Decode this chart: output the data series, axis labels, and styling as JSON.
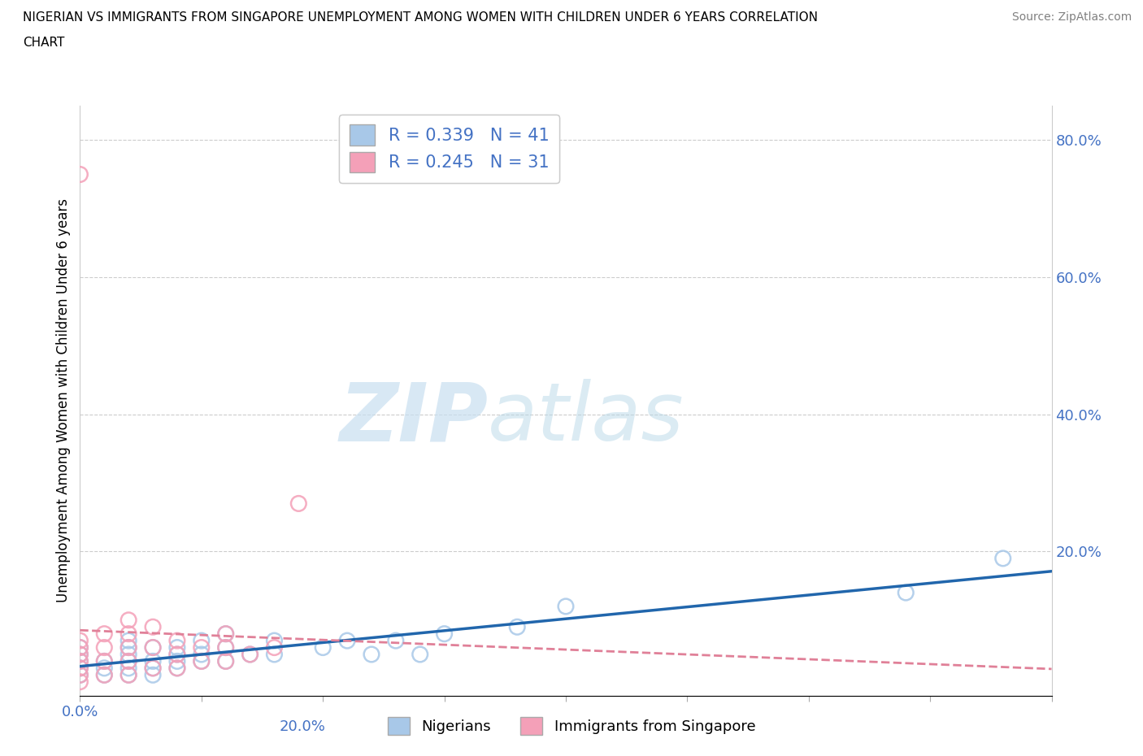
{
  "title_line1": "NIGERIAN VS IMMIGRANTS FROM SINGAPORE UNEMPLOYMENT AMONG WOMEN WITH CHILDREN UNDER 6 YEARS CORRELATION",
  "title_line2": "CHART",
  "source": "Source: ZipAtlas.com",
  "ylabel": "Unemployment Among Women with Children Under 6 years",
  "watermark_zip": "ZIP",
  "watermark_atlas": "atlas",
  "blue_color": "#a8c8e8",
  "pink_color": "#f4a0b8",
  "blue_line_color": "#2166ac",
  "pink_line_color": "#e08098",
  "legend_blue_label": "R = 0.339   N = 41",
  "legend_pink_label": "R = 0.245   N = 31",
  "legend_bottom_blue": "Nigerians",
  "legend_bottom_pink": "Immigrants from Singapore",
  "xlim": [
    0.0,
    0.2
  ],
  "ylim": [
    -0.01,
    0.85
  ],
  "yticks_right": [
    0.2,
    0.4,
    0.6,
    0.8
  ],
  "xtick_labels_pos": [
    0.0,
    0.2
  ],
  "xtick_labels_text": [
    "0.0%",
    "20.0%"
  ],
  "blue_x": [
    0.0,
    0.0,
    0.0,
    0.0,
    0.0,
    0.005,
    0.005,
    0.005,
    0.01,
    0.01,
    0.01,
    0.01,
    0.01,
    0.01,
    0.015,
    0.015,
    0.015,
    0.015,
    0.02,
    0.02,
    0.02,
    0.02,
    0.025,
    0.025,
    0.025,
    0.03,
    0.03,
    0.03,
    0.035,
    0.04,
    0.04,
    0.05,
    0.055,
    0.06,
    0.065,
    0.07,
    0.075,
    0.09,
    0.1,
    0.17,
    0.19
  ],
  "blue_y": [
    0.02,
    0.03,
    0.04,
    0.05,
    0.06,
    0.02,
    0.03,
    0.04,
    0.02,
    0.03,
    0.04,
    0.05,
    0.06,
    0.07,
    0.02,
    0.03,
    0.04,
    0.06,
    0.03,
    0.04,
    0.05,
    0.06,
    0.04,
    0.05,
    0.07,
    0.04,
    0.06,
    0.08,
    0.05,
    0.05,
    0.07,
    0.06,
    0.07,
    0.05,
    0.07,
    0.05,
    0.08,
    0.09,
    0.12,
    0.14,
    0.19
  ],
  "pink_x": [
    0.0,
    0.0,
    0.0,
    0.0,
    0.0,
    0.0,
    0.0,
    0.0,
    0.005,
    0.005,
    0.005,
    0.005,
    0.01,
    0.01,
    0.01,
    0.01,
    0.01,
    0.015,
    0.015,
    0.015,
    0.02,
    0.02,
    0.02,
    0.025,
    0.025,
    0.03,
    0.03,
    0.03,
    0.035,
    0.04,
    0.045
  ],
  "pink_y": [
    0.01,
    0.02,
    0.03,
    0.04,
    0.05,
    0.06,
    0.07,
    0.75,
    0.02,
    0.04,
    0.06,
    0.08,
    0.02,
    0.04,
    0.06,
    0.08,
    0.1,
    0.03,
    0.06,
    0.09,
    0.03,
    0.05,
    0.07,
    0.04,
    0.06,
    0.04,
    0.06,
    0.08,
    0.05,
    0.06,
    0.27
  ]
}
